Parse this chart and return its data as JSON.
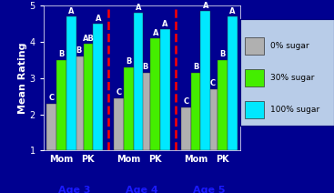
{
  "group_labels": [
    "Mom",
    "PK",
    "Mom",
    "PK",
    "Mom",
    "PK"
  ],
  "age_labels": [
    "Age 3",
    "Age 4",
    "Age 5"
  ],
  "sugar0": [
    2.3,
    3.6,
    2.45,
    3.15,
    2.2,
    2.7
  ],
  "sugar30": [
    3.5,
    3.95,
    3.3,
    4.1,
    3.15,
    3.5
  ],
  "sugar100": [
    4.7,
    4.5,
    4.8,
    4.35,
    4.85,
    4.7
  ],
  "letters0": [
    "C",
    "B",
    "C",
    "B",
    "C",
    "C"
  ],
  "letters30": [
    "B",
    "AB",
    "B",
    "A",
    "B",
    "B"
  ],
  "letters100": [
    "A",
    "A",
    "A",
    "A",
    "A",
    "A"
  ],
  "bar_colors": [
    "#b0b0b0",
    "#44ee00",
    "#00e8ff"
  ],
  "background_color": "#000090",
  "plot_bg_color": "#000090",
  "ylabel": "Mean Rating",
  "ylim": [
    1,
    5
  ],
  "yticks": [
    1,
    2,
    3,
    4,
    5
  ],
  "legend_labels": [
    "0% sugar",
    "30% sugar",
    "100% sugar"
  ],
  "legend_facecolor": "#b8cce8",
  "letter_color": "white",
  "letter_fontsize": 6,
  "bar_width": 0.22
}
